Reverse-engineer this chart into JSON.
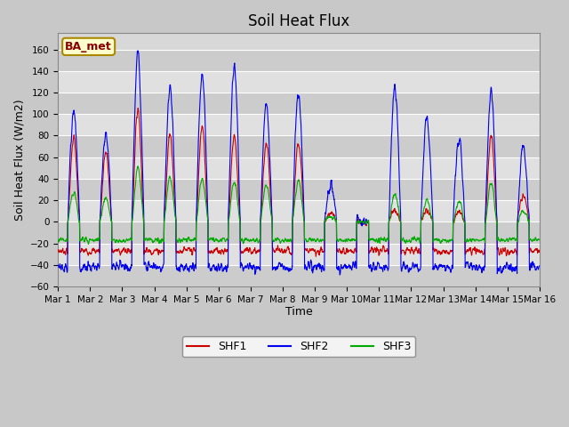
{
  "title": "Soil Heat Flux",
  "ylabel": "Soil Heat Flux (W/m2)",
  "xlabel": "Time",
  "ylim": [
    -60,
    175
  ],
  "yticks": [
    -60,
    -40,
    -20,
    0,
    20,
    40,
    60,
    80,
    100,
    120,
    140,
    160
  ],
  "shf1_color": "#cc0000",
  "shf2_color": "#0000ee",
  "shf3_color": "#00aa00",
  "label_box_text": "BA_met",
  "legend_labels": [
    "SHF1",
    "SHF2",
    "SHF3"
  ],
  "fig_bg_color": "#c8c8c8",
  "plot_bg_color": "#d8d8d8",
  "band_colors": [
    "#cccccc",
    "#e0e0e0"
  ],
  "n_days": 15,
  "ppd": 144,
  "shf2_day_peaks": [
    100,
    80,
    155,
    125,
    137,
    145,
    108,
    120,
    35,
    0,
    125,
    98,
    75,
    120,
    70
  ],
  "shf1_day_peaks": [
    78,
    65,
    105,
    82,
    88,
    80,
    72,
    75,
    8,
    0,
    12,
    12,
    10,
    80,
    25
  ],
  "shf3_day_peaks": [
    27,
    22,
    50,
    42,
    40,
    38,
    35,
    38,
    5,
    0,
    25,
    20,
    18,
    35,
    10
  ],
  "shf1_night": -27,
  "shf2_night": -42,
  "shf3_night": -17,
  "title_fontsize": 12,
  "label_fontsize": 9,
  "tick_fontsize": 7.5
}
